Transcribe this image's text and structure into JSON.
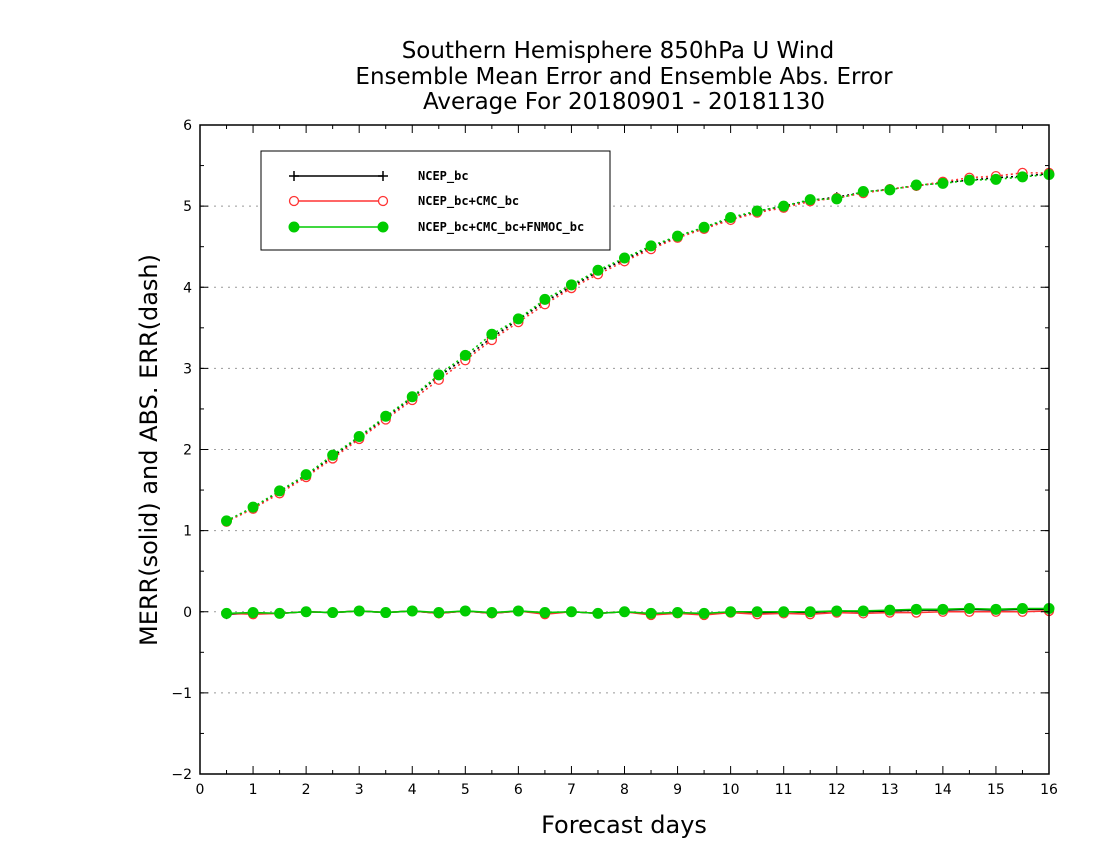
{
  "chart_data": {
    "type": "line",
    "title_lines": [
      "Southern Hemisphere 850hPa U Wind",
      "Ensemble Mean Error and Ensemble Abs. Error",
      "Average For 20180901 - 20181130"
    ],
    "xlabel": "Forecast days",
    "ylabel": "MERR(solid) and ABS. ERR(dash)",
    "xlim": [
      0,
      16
    ],
    "ylim": [
      -2,
      6
    ],
    "xticks": [
      "0",
      "1",
      "2",
      "3",
      "4",
      "5",
      "6",
      "7",
      "8",
      "9",
      "10",
      "11",
      "12",
      "13",
      "14",
      "15",
      "16"
    ],
    "yticks": [
      "-2",
      "-1",
      "0",
      "1",
      "2",
      "3",
      "4",
      "5",
      "6"
    ],
    "grid": "horizontal-dotted",
    "legend_position": "top-left",
    "x": [
      0.5,
      1,
      1.5,
      2,
      2.5,
      3,
      3.5,
      4,
      4.5,
      5,
      5.5,
      6,
      6.5,
      7,
      7.5,
      8,
      8.5,
      9,
      9.5,
      10,
      10.5,
      11,
      11.5,
      12,
      12.5,
      13,
      13.5,
      14,
      14.5,
      15,
      15.5,
      16
    ],
    "series": [
      {
        "name": "NCEP_bc",
        "color": "#000000",
        "marker": "plus",
        "merr": [
          -0.03,
          -0.02,
          -0.02,
          0.0,
          -0.01,
          0.01,
          -0.01,
          0.01,
          -0.02,
          0.01,
          -0.02,
          0.01,
          -0.02,
          0.0,
          -0.02,
          0.0,
          -0.03,
          -0.01,
          -0.03,
          0.0,
          -0.02,
          0.0,
          -0.01,
          0.01,
          0.0,
          0.01,
          0.02,
          0.02,
          0.03,
          0.02,
          0.03,
          0.03
        ],
        "abserr": [
          1.12,
          1.28,
          1.48,
          1.68,
          1.91,
          2.15,
          2.39,
          2.64,
          2.9,
          3.13,
          3.38,
          3.6,
          3.82,
          4.01,
          4.19,
          4.34,
          4.49,
          4.62,
          4.73,
          4.84,
          4.93,
          5.0,
          5.07,
          5.11,
          5.17,
          5.21,
          5.25,
          5.29,
          5.32,
          5.35,
          5.37,
          5.4
        ]
      },
      {
        "name": "NCEP_bc+CMC_bc",
        "color": "#ff3333",
        "marker": "open-circle",
        "merr": [
          -0.02,
          -0.03,
          -0.02,
          0.0,
          -0.01,
          0.01,
          -0.01,
          0.01,
          -0.02,
          0.01,
          -0.02,
          0.01,
          -0.03,
          0.0,
          -0.02,
          0.0,
          -0.04,
          -0.02,
          -0.04,
          -0.01,
          -0.03,
          -0.02,
          -0.03,
          -0.01,
          -0.02,
          -0.01,
          -0.01,
          0.0,
          0.0,
          0.0,
          0.0,
          0.01
        ],
        "abserr": [
          1.11,
          1.27,
          1.46,
          1.66,
          1.89,
          2.13,
          2.37,
          2.61,
          2.86,
          3.1,
          3.35,
          3.57,
          3.79,
          3.99,
          4.16,
          4.32,
          4.47,
          4.61,
          4.72,
          4.83,
          4.92,
          4.98,
          5.06,
          5.1,
          5.16,
          5.21,
          5.25,
          5.3,
          5.35,
          5.37,
          5.41,
          5.41
        ]
      },
      {
        "name": "NCEP_bc+CMC_bc+FNMOC_bc",
        "color": "#00cc00",
        "marker": "filled-circle",
        "merr": [
          -0.02,
          -0.01,
          -0.02,
          0.0,
          -0.01,
          0.01,
          -0.01,
          0.01,
          -0.01,
          0.01,
          -0.01,
          0.01,
          -0.01,
          0.0,
          -0.02,
          0.0,
          -0.02,
          -0.01,
          -0.02,
          0.0,
          0.0,
          0.0,
          0.0,
          0.01,
          0.01,
          0.02,
          0.03,
          0.03,
          0.04,
          0.03,
          0.04,
          0.04
        ],
        "abserr": [
          1.12,
          1.29,
          1.49,
          1.69,
          1.93,
          2.16,
          2.41,
          2.65,
          2.92,
          3.16,
          3.42,
          3.61,
          3.85,
          4.03,
          4.21,
          4.36,
          4.51,
          4.63,
          4.74,
          4.86,
          4.94,
          5.0,
          5.08,
          5.09,
          5.18,
          5.2,
          5.26,
          5.28,
          5.32,
          5.33,
          5.36,
          5.39
        ]
      }
    ]
  }
}
